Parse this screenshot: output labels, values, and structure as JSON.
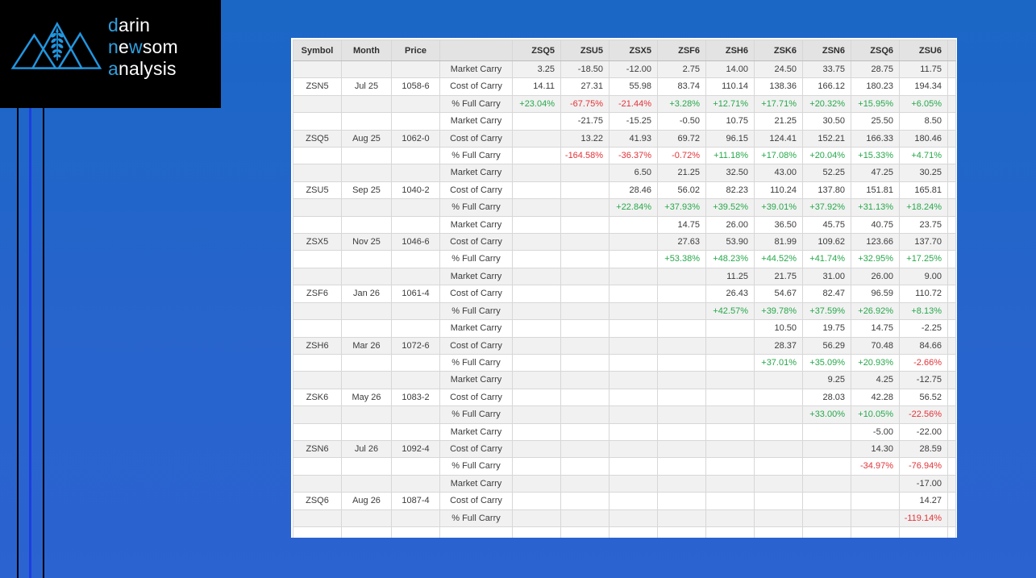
{
  "colors": {
    "positive": "#27a84b",
    "negative": "#e23338",
    "logo_accent": "#2ea0e0",
    "stripe_blue": "#1c3de2",
    "bg_top": "#1a67c6",
    "bg_mid": "#2764cc",
    "bg_bottom": "#2b63d1"
  },
  "logo": {
    "d": "d",
    "arin": "arin",
    "n": "n",
    "e": "e",
    "w": "w",
    "som": "som",
    "a": "a",
    "nalysis": "nalysis"
  },
  "chart_data": {
    "type": "table",
    "columns": [
      "Symbol",
      "Month",
      "Price",
      "",
      "ZSQ5",
      "ZSU5",
      "ZSX5",
      "ZSF6",
      "ZSH6",
      "ZSK6",
      "ZSN6",
      "ZSQ6",
      "ZSU6",
      ""
    ],
    "row_labels": [
      "Market Carry",
      "Cost of Carry",
      "% Full Carry"
    ],
    "groups": [
      {
        "symbol": "ZSN5",
        "month": "Jul 25",
        "price": "1058-6",
        "market_carry": [
          "3.25",
          "-18.50",
          "-12.00",
          "2.75",
          "14.00",
          "24.50",
          "33.75",
          "28.75",
          "11.75"
        ],
        "cost_of_carry": [
          "14.11",
          "27.31",
          "55.98",
          "83.74",
          "110.14",
          "138.36",
          "166.12",
          "180.23",
          "194.34"
        ],
        "pct_full_carry": [
          "+23.04%",
          "-67.75%",
          "-21.44%",
          "+3.28%",
          "+12.71%",
          "+17.71%",
          "+20.32%",
          "+15.95%",
          "+6.05%"
        ]
      },
      {
        "symbol": "ZSQ5",
        "month": "Aug 25",
        "price": "1062-0",
        "market_carry": [
          "",
          "-21.75",
          "-15.25",
          "-0.50",
          "10.75",
          "21.25",
          "30.50",
          "25.50",
          "8.50"
        ],
        "cost_of_carry": [
          "",
          "13.22",
          "41.93",
          "69.72",
          "96.15",
          "124.41",
          "152.21",
          "166.33",
          "180.46"
        ],
        "pct_full_carry": [
          "",
          "-164.58%",
          "-36.37%",
          "-0.72%",
          "+11.18%",
          "+17.08%",
          "+20.04%",
          "+15.33%",
          "+4.71%"
        ]
      },
      {
        "symbol": "ZSU5",
        "month": "Sep 25",
        "price": "1040-2",
        "market_carry": [
          "",
          "",
          "6.50",
          "21.25",
          "32.50",
          "43.00",
          "52.25",
          "47.25",
          "30.25"
        ],
        "cost_of_carry": [
          "",
          "",
          "28.46",
          "56.02",
          "82.23",
          "110.24",
          "137.80",
          "151.81",
          "165.81"
        ],
        "pct_full_carry": [
          "",
          "",
          "+22.84%",
          "+37.93%",
          "+39.52%",
          "+39.01%",
          "+37.92%",
          "+31.13%",
          "+18.24%"
        ]
      },
      {
        "symbol": "ZSX5",
        "month": "Nov 25",
        "price": "1046-6",
        "market_carry": [
          "",
          "",
          "",
          "14.75",
          "26.00",
          "36.50",
          "45.75",
          "40.75",
          "23.75"
        ],
        "cost_of_carry": [
          "",
          "",
          "",
          "27.63",
          "53.90",
          "81.99",
          "109.62",
          "123.66",
          "137.70"
        ],
        "pct_full_carry": [
          "",
          "",
          "",
          "+53.38%",
          "+48.23%",
          "+44.52%",
          "+41.74%",
          "+32.95%",
          "+17.25%"
        ]
      },
      {
        "symbol": "ZSF6",
        "month": "Jan 26",
        "price": "1061-4",
        "market_carry": [
          "",
          "",
          "",
          "",
          "11.25",
          "21.75",
          "31.00",
          "26.00",
          "9.00"
        ],
        "cost_of_carry": [
          "",
          "",
          "",
          "",
          "26.43",
          "54.67",
          "82.47",
          "96.59",
          "110.72"
        ],
        "pct_full_carry": [
          "",
          "",
          "",
          "",
          "+42.57%",
          "+39.78%",
          "+37.59%",
          "+26.92%",
          "+8.13%"
        ]
      },
      {
        "symbol": "ZSH6",
        "month": "Mar 26",
        "price": "1072-6",
        "market_carry": [
          "",
          "",
          "",
          "",
          "",
          "10.50",
          "19.75",
          "14.75",
          "-2.25"
        ],
        "cost_of_carry": [
          "",
          "",
          "",
          "",
          "",
          "28.37",
          "56.29",
          "70.48",
          "84.66"
        ],
        "pct_full_carry": [
          "",
          "",
          "",
          "",
          "",
          "+37.01%",
          "+35.09%",
          "+20.93%",
          "-2.66%"
        ]
      },
      {
        "symbol": "ZSK6",
        "month": "May 26",
        "price": "1083-2",
        "market_carry": [
          "",
          "",
          "",
          "",
          "",
          "",
          "9.25",
          "4.25",
          "-12.75"
        ],
        "cost_of_carry": [
          "",
          "",
          "",
          "",
          "",
          "",
          "28.03",
          "42.28",
          "56.52"
        ],
        "pct_full_carry": [
          "",
          "",
          "",
          "",
          "",
          "",
          "+33.00%",
          "+10.05%",
          "-22.56%"
        ]
      },
      {
        "symbol": "ZSN6",
        "month": "Jul 26",
        "price": "1092-4",
        "market_carry": [
          "",
          "",
          "",
          "",
          "",
          "",
          "",
          "-5.00",
          "-22.00"
        ],
        "cost_of_carry": [
          "",
          "",
          "",
          "",
          "",
          "",
          "",
          "14.30",
          "28.59"
        ],
        "pct_full_carry": [
          "",
          "",
          "",
          "",
          "",
          "",
          "",
          "-34.97%",
          "-76.94%"
        ]
      },
      {
        "symbol": "ZSQ6",
        "month": "Aug 26",
        "price": "1087-4",
        "market_carry": [
          "",
          "",
          "",
          "",
          "",
          "",
          "",
          "",
          "-17.00"
        ],
        "cost_of_carry": [
          "",
          "",
          "",
          "",
          "",
          "",
          "",
          "",
          "14.27"
        ],
        "pct_full_carry": [
          "",
          "",
          "",
          "",
          "",
          "",
          "",
          "",
          "-119.14%"
        ]
      }
    ]
  }
}
